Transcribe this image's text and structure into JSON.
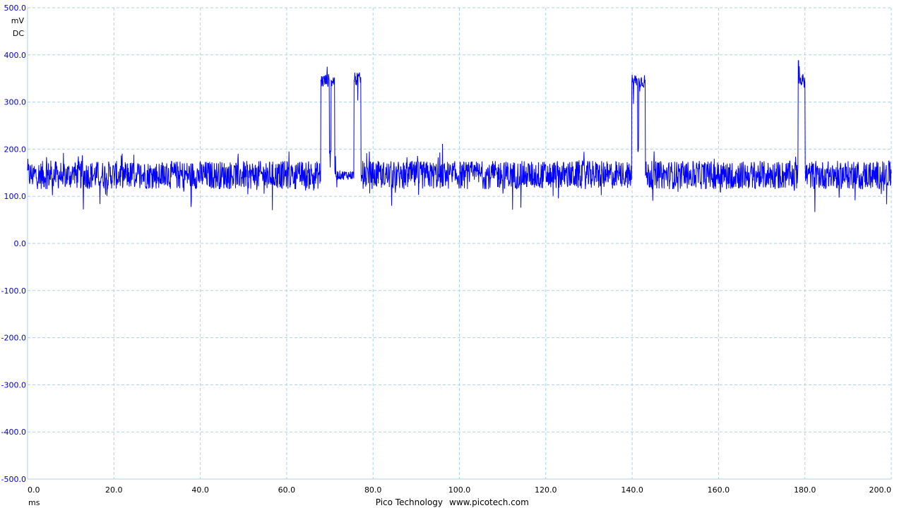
{
  "colors": {
    "trace": "#0000ff",
    "grid": "#a8d4e6",
    "y_axis_text": "#0000c8",
    "x_axis_text": "#000000",
    "background": "#ffffff"
  },
  "y_axis": {
    "unit_line1": "mV",
    "unit_line2": "DC",
    "ticks": [
      "500.0",
      "400.0",
      "300.0",
      "200.0",
      "100.0",
      "0.0",
      "-100.0",
      "-200.0",
      "-300.0",
      "-400.0",
      "-500.0"
    ]
  },
  "x_axis": {
    "unit": "ms",
    "ticks": [
      "0.0",
      "20.0",
      "40.0",
      "60.0",
      "80.0",
      "100.0",
      "120.0",
      "140.0",
      "160.0",
      "180.0",
      "200.0"
    ]
  },
  "footer": {
    "brand": "Pico Technology",
    "url": "www.picotech.com"
  },
  "chart_data": {
    "type": "line",
    "title": "",
    "xlabel": "ms",
    "ylabel": "mV DC",
    "xlim": [
      0,
      200
    ],
    "ylim": [
      -500,
      500
    ],
    "grid": true,
    "legend": "none",
    "baseline_mv": 145,
    "noise_peak_to_peak_mv": 60,
    "series": [
      {
        "name": "",
        "pulse_level_mv": 345,
        "pulses": [
          {
            "start_ms": 67.9,
            "end_ms": 69.9,
            "level_mv": 345
          },
          {
            "start_ms": 70.3,
            "end_ms": 71.1,
            "level_mv": 345
          },
          {
            "start_ms": 75.6,
            "end_ms": 77.2,
            "level_mv": 348
          },
          {
            "start_ms": 139.9,
            "end_ms": 141.3,
            "level_mv": 345
          },
          {
            "start_ms": 141.5,
            "end_ms": 143.0,
            "level_mv": 345
          },
          {
            "start_ms": 178.4,
            "end_ms": 180.0,
            "level_mv": 345
          }
        ],
        "dips": [
          {
            "start_ms": 69.9,
            "end_ms": 70.3,
            "level_mv": 200
          },
          {
            "start_ms": 71.1,
            "end_ms": 75.6,
            "level_mv": 145
          },
          {
            "start_ms": 77.2,
            "end_ms": 77.5,
            "level_mv": 140
          },
          {
            "start_ms": 141.3,
            "end_ms": 141.5,
            "level_mv": 195
          }
        ],
        "peaks_mv": [
          {
            "x_ms": 69.4,
            "y_mv": 375
          },
          {
            "x_ms": 178.5,
            "y_mv": 388
          }
        ]
      }
    ]
  }
}
